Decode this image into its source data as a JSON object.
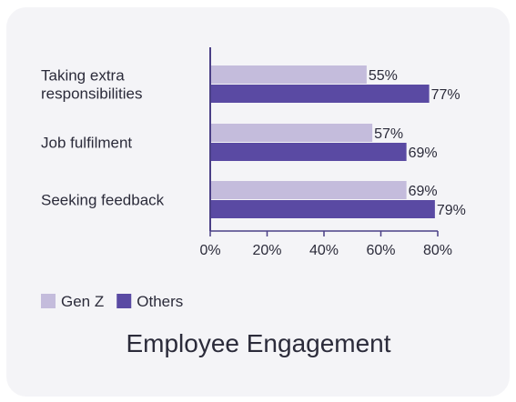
{
  "chart_data": {
    "type": "bar",
    "orientation": "horizontal",
    "title": "Employee Engagement",
    "categories": [
      [
        "Taking extra",
        "responsibilities"
      ],
      [
        "Job fulfilment"
      ],
      [
        "Seeking feedback"
      ]
    ],
    "series": [
      {
        "name": "Gen Z",
        "values": [
          55,
          57,
          69
        ],
        "labels": [
          "55%",
          "57%",
          "69%"
        ],
        "color": "#c4bcdc"
      },
      {
        "name": "Others",
        "values": [
          77,
          69,
          79
        ],
        "labels": [
          "77%",
          "69%",
          "79%"
        ],
        "color": "#5a4aa3"
      }
    ],
    "xlim": [
      0,
      80
    ],
    "xticks": [
      0,
      20,
      40,
      60,
      80
    ],
    "xtick_labels": [
      "0%",
      "20%",
      "40%",
      "60%",
      "80%"
    ],
    "grid": false,
    "legend": "bottom-left",
    "axis_color": "#4a3f86"
  }
}
